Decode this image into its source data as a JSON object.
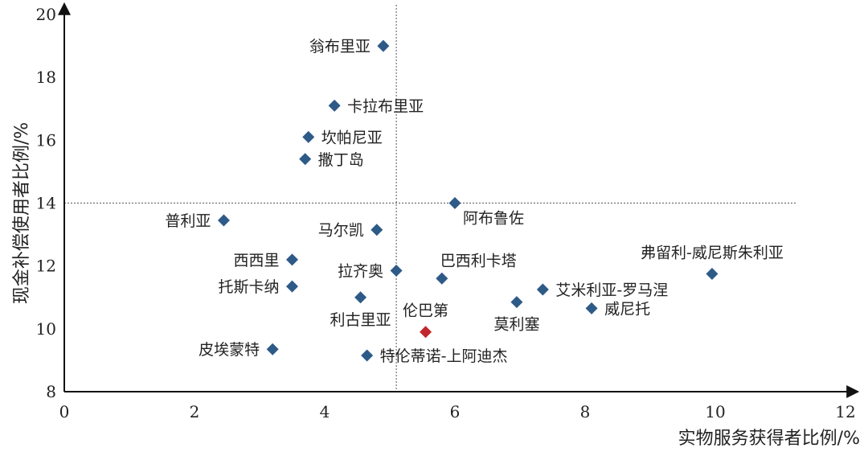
{
  "chart_data": {
    "type": "scatter",
    "xlabel": "实物服务获得者比例/%",
    "ylabel": "现金补偿使用者比例/%",
    "xlim": [
      0,
      12
    ],
    "ylim": [
      8,
      20
    ],
    "xticks": [
      0,
      2,
      4,
      6,
      8,
      10,
      12
    ],
    "yticks": [
      8,
      10,
      12,
      14,
      16,
      18,
      20
    ],
    "reference_lines": {
      "x": 5.1,
      "y": 14.0
    },
    "colors": {
      "default": "#2e5a87",
      "highlight": "#c1272d",
      "axis": "#111111",
      "reference": "#555555"
    },
    "points": [
      {
        "name": "翁布里亚",
        "x": 4.9,
        "y": 19.0,
        "label_pos": "left"
      },
      {
        "name": "卡拉布里亚",
        "x": 4.15,
        "y": 17.1,
        "label_pos": "right"
      },
      {
        "name": "坎帕尼亚",
        "x": 3.75,
        "y": 16.1,
        "label_pos": "right"
      },
      {
        "name": "撒丁岛",
        "x": 3.7,
        "y": 15.4,
        "label_pos": "right"
      },
      {
        "name": "阿布鲁佐",
        "x": 6.0,
        "y": 14.0,
        "label_pos": "below-right"
      },
      {
        "name": "普利亚",
        "x": 2.45,
        "y": 13.45,
        "label_pos": "left"
      },
      {
        "name": "马尔凯",
        "x": 4.8,
        "y": 13.15,
        "label_pos": "left"
      },
      {
        "name": "西西里",
        "x": 3.5,
        "y": 12.2,
        "label_pos": "left"
      },
      {
        "name": "拉齐奥",
        "x": 5.1,
        "y": 11.85,
        "label_pos": "left"
      },
      {
        "name": "巴西利卡塔",
        "x": 5.8,
        "y": 11.6,
        "label_pos": "above-right"
      },
      {
        "name": "弗留利-威尼斯朱利亚",
        "x": 9.95,
        "y": 11.75,
        "label_pos": "above"
      },
      {
        "name": "托斯卡纳",
        "x": 3.5,
        "y": 11.35,
        "label_pos": "left"
      },
      {
        "name": "艾米利亚-罗马涅",
        "x": 7.35,
        "y": 11.25,
        "label_pos": "right"
      },
      {
        "name": "利古里亚",
        "x": 4.55,
        "y": 11.0,
        "label_pos": "below"
      },
      {
        "name": "伦巴第",
        "x": 5.55,
        "y": 9.9,
        "label_pos": "above",
        "highlight": true
      },
      {
        "name": "莫利塞",
        "x": 6.95,
        "y": 10.85,
        "label_pos": "below"
      },
      {
        "name": "威尼托",
        "x": 8.1,
        "y": 10.65,
        "label_pos": "right"
      },
      {
        "name": "皮埃蒙特",
        "x": 3.2,
        "y": 9.35,
        "label_pos": "left"
      },
      {
        "name": "特伦蒂诺-上阿迪杰",
        "x": 4.65,
        "y": 9.15,
        "label_pos": "right"
      }
    ]
  }
}
